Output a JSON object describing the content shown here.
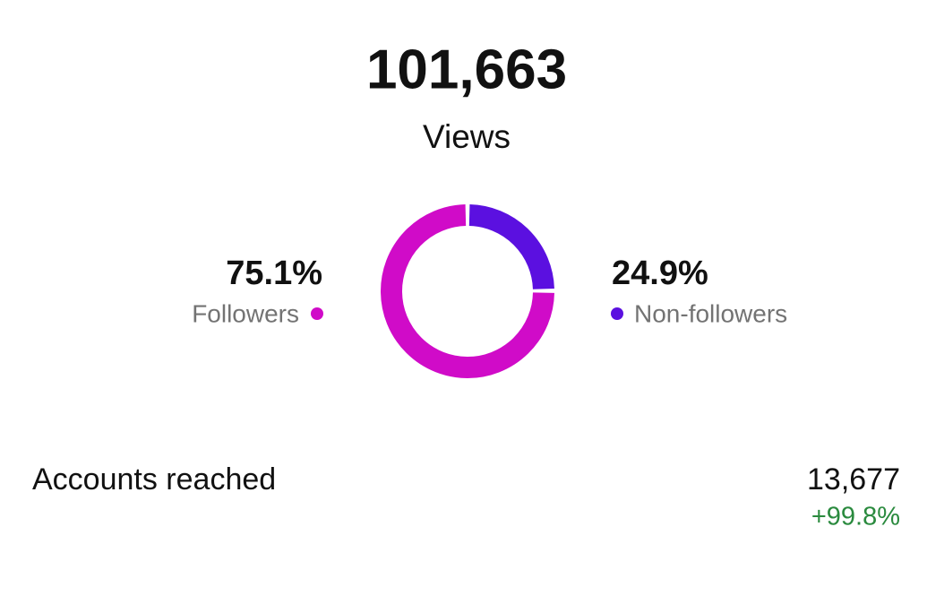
{
  "summary": {
    "value": "101,663",
    "label": "Views"
  },
  "chart_data": {
    "type": "donut",
    "categories": [
      "Followers",
      "Non-followers"
    ],
    "values": [
      75.1,
      24.9
    ],
    "value_labels": [
      "75.1%",
      "24.9%"
    ],
    "colors": [
      "#d00bc8",
      "#5b10e0"
    ]
  },
  "metrics": [
    {
      "label": "Accounts reached",
      "value": "13,677",
      "change": "+99.8%"
    }
  ]
}
